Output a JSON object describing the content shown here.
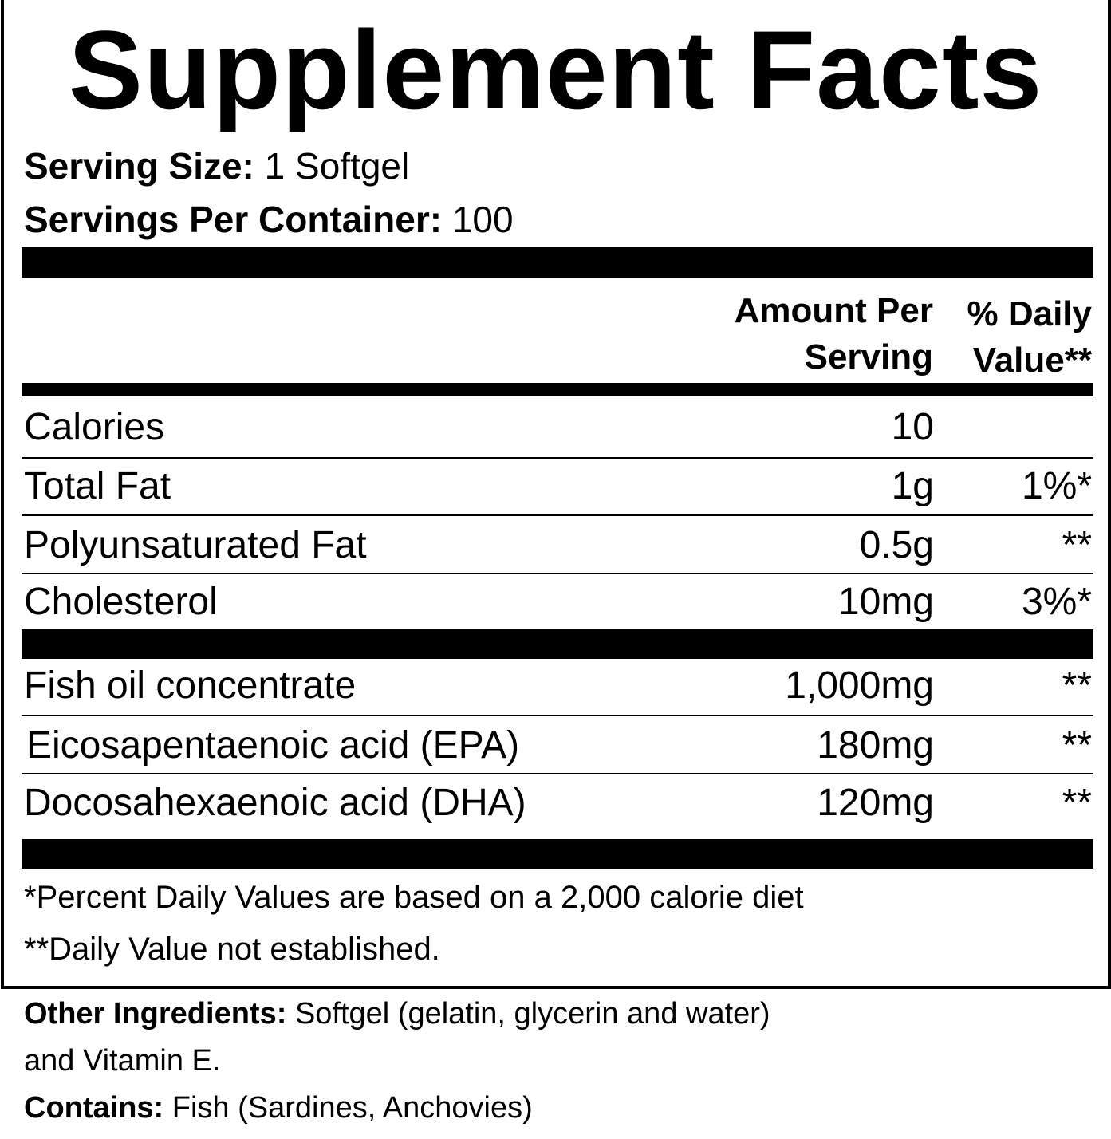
{
  "title": "Supplement Facts",
  "serving_size": {
    "label": "Serving Size:",
    "value": "1 Softgel"
  },
  "servings_per_container": {
    "label": "Servings Per Container:",
    "value": "100"
  },
  "header": {
    "amount_line1": "Amount Per",
    "amount_line2": "Serving",
    "dv_line1": "% Daily",
    "dv_line2": "Value**"
  },
  "rows": [
    {
      "name": "Calories",
      "amount": "10",
      "dv": ""
    },
    {
      "name": "Total Fat",
      "amount": "1g",
      "dv": "1%*"
    },
    {
      "name": "Polyunsaturated Fat",
      "amount": "0.5g",
      "dv": "**"
    },
    {
      "name": "Cholesterol",
      "amount": "10mg",
      "dv": "3%*"
    },
    {
      "name": "Fish oil concentrate",
      "amount": "1,000mg",
      "dv": "**"
    },
    {
      "name": "Eicosapentaenoic acid (EPA)",
      "amount": "180mg",
      "dv": "**"
    },
    {
      "name": "Docosahexaenoic acid (DHA)",
      "amount": "120mg",
      "dv": "**"
    }
  ],
  "footnotes": [
    "*Percent Daily Values are based on a 2,000 calorie diet",
    "**Daily Value not established."
  ],
  "other_ingredients": {
    "label": "Other Ingredients:",
    "line1": "Softgel (gelatin, glycerin and water)",
    "line2": "and Vitamin E."
  },
  "contains": {
    "label": "Contains:",
    "value": "Fish (Sardines, Anchovies)"
  }
}
